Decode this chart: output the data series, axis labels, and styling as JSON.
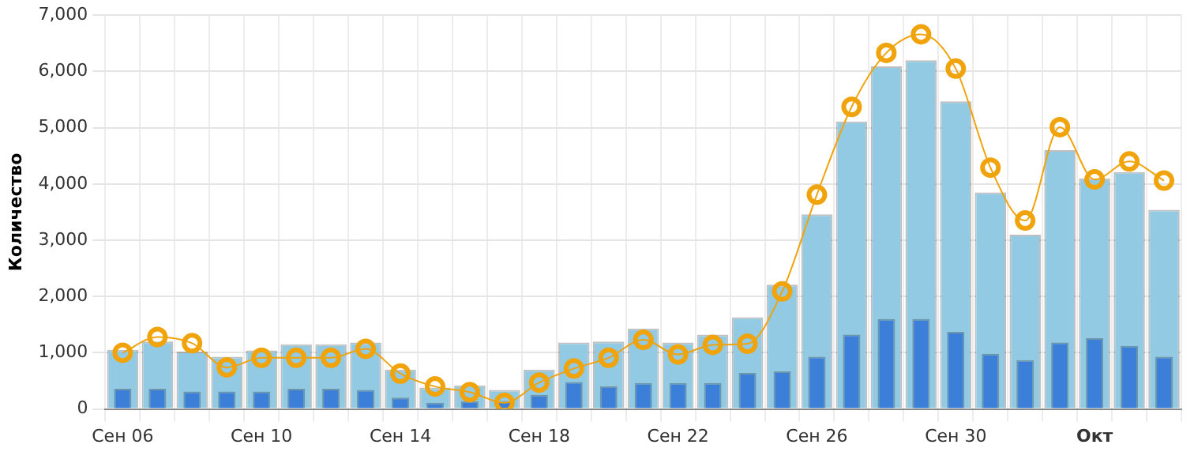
{
  "chart_data": {
    "type": "bar",
    "ylabel": "Количество",
    "categories": [
      "Сен 06",
      null,
      null,
      null,
      "Сен 10",
      null,
      null,
      null,
      "Сен 14",
      null,
      null,
      null,
      "Сен 18",
      null,
      null,
      null,
      "Сен 22",
      null,
      null,
      null,
      "Сен 26",
      null,
      null,
      null,
      "Сен 30",
      null,
      null,
      null,
      "Окт",
      null,
      null
    ],
    "series": [
      {
        "color": "#92c9e3",
        "values": [
          1050,
          1200,
          1020,
          930,
          1040,
          1150,
          1150,
          1180,
          700,
          380,
          420,
          340,
          700,
          1180,
          1200,
          1430,
          1180,
          1320,
          1630,
          2210,
          3460,
          5110,
          6090,
          6200,
          5470,
          3850,
          3100,
          4600,
          4100,
          4210,
          3540
        ]
      },
      {
        "color": "#3c7fd8",
        "values": [
          360,
          360,
          310,
          310,
          310,
          360,
          360,
          340,
          200,
          110,
          140,
          140,
          250,
          480,
          400,
          460,
          460,
          460,
          640,
          670,
          930,
          1320,
          1600,
          1600,
          1370,
          980,
          870,
          1180,
          1260,
          1120,
          930
        ]
      },
      {
        "type": "line",
        "color": "#f0a30a",
        "values": [
          1000,
          1280,
          1170,
          740,
          910,
          910,
          910,
          1070,
          630,
          400,
          300,
          110,
          470,
          720,
          910,
          1230,
          970,
          1140,
          1160,
          2090,
          3810,
          5370,
          6330,
          6660,
          6050,
          4290,
          3350,
          5010,
          4080,
          4400,
          4060
        ]
      }
    ],
    "ylim": [
      0,
      7000
    ],
    "yticks": [
      {
        "value": 0,
        "label": "0"
      },
      {
        "value": 1000,
        "label": "1,000"
      },
      {
        "value": 2000,
        "label": "2,000"
      },
      {
        "value": 3000,
        "label": "3,000"
      },
      {
        "value": 4000,
        "label": "4,000"
      },
      {
        "value": 5000,
        "label": "5,000"
      },
      {
        "value": 6000,
        "label": "6,000"
      },
      {
        "value": 7000,
        "label": "7,000"
      }
    ],
    "grid": true,
    "marker": "circle",
    "line_style": "solid"
  }
}
